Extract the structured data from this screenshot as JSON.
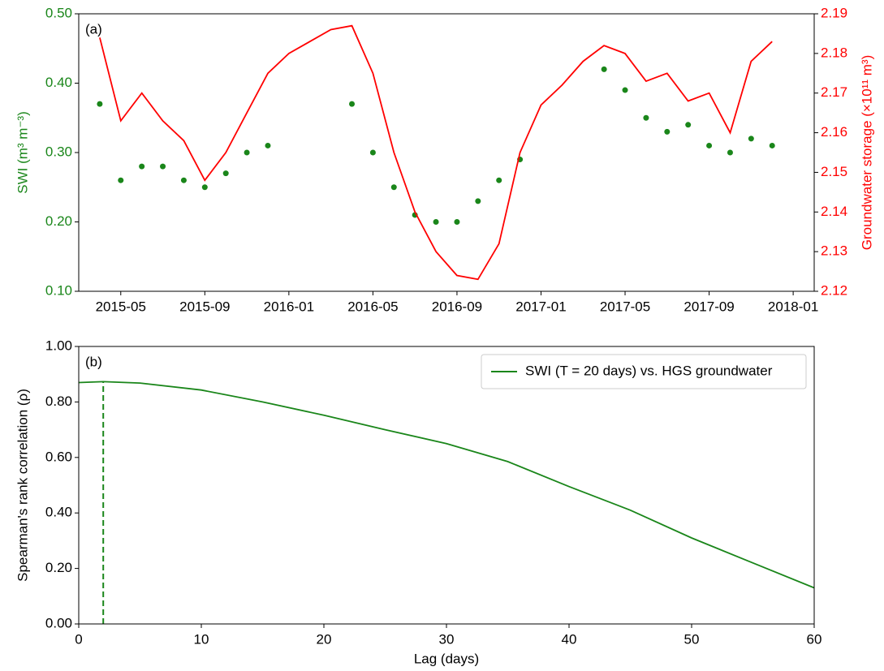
{
  "chart_data": [
    {
      "type": "combo",
      "annotation": "(a)",
      "ylabel": "SWI (m³ m⁻³)",
      "y2label": "Groundwater storage (×10¹¹ m³)",
      "x": [
        "2015-04",
        "2015-05",
        "2015-06",
        "2015-07",
        "2015-08",
        "2015-09",
        "2015-10",
        "2015-11",
        "2015-12",
        "2016-01",
        "2016-02",
        "2016-03",
        "2016-04",
        "2016-05",
        "2016-06",
        "2016-07",
        "2016-08",
        "2016-09",
        "2016-10",
        "2016-11",
        "2016-12",
        "2017-01",
        "2017-02",
        "2017-03",
        "2017-04",
        "2017-05",
        "2017-06",
        "2017-07",
        "2017-08",
        "2017-09",
        "2017-10",
        "2017-11",
        "2017-12"
      ],
      "xlim": [
        "2015-03",
        "2018-02"
      ],
      "xticks": [
        "2015-05",
        "2015-09",
        "2016-01",
        "2016-05",
        "2016-09",
        "2017-01",
        "2017-05",
        "2017-09",
        "2018-01"
      ],
      "ylim": [
        0.1,
        0.5
      ],
      "yticks": [
        {
          "value": 0.1,
          "label": "0.10"
        },
        {
          "value": 0.2,
          "label": "0.20"
        },
        {
          "value": 0.3,
          "label": "0.30"
        },
        {
          "value": 0.4,
          "label": "0.40"
        },
        {
          "value": 0.5,
          "label": "0.50"
        }
      ],
      "y2lim": [
        2.12,
        2.19
      ],
      "y2ticks": [
        2.12,
        2.13,
        2.14,
        2.15,
        2.16,
        2.17,
        2.18,
        2.19
      ],
      "series": [
        {
          "type": "scatter",
          "axis": "y",
          "color": "#1a861a",
          "values": [
            0.37,
            0.26,
            0.28,
            0.28,
            0.26,
            0.25,
            0.27,
            0.3,
            0.31,
            null,
            null,
            null,
            0.37,
            0.3,
            0.25,
            0.21,
            0.2,
            0.2,
            0.23,
            0.26,
            0.29,
            null,
            null,
            null,
            0.42,
            0.39,
            0.35,
            0.33,
            0.34,
            0.31,
            0.3,
            0.32,
            0.31
          ]
        },
        {
          "type": "line",
          "axis": "y2",
          "color": "#ff0000",
          "values": [
            2.184,
            2.163,
            2.17,
            2.163,
            2.158,
            2.148,
            2.155,
            2.165,
            2.175,
            2.18,
            2.183,
            2.186,
            2.187,
            2.175,
            2.155,
            2.14,
            2.13,
            2.124,
            2.123,
            2.132,
            2.155,
            2.167,
            2.172,
            2.178,
            2.182,
            2.18,
            2.173,
            2.175,
            2.168,
            2.17,
            2.16,
            2.178,
            2.183
          ]
        }
      ]
    },
    {
      "type": "line",
      "annotation": "(b)",
      "xlabel": "Lag (days)",
      "ylabel": "Spearman's rank correlation (ρ)",
      "x": [
        0,
        2,
        5,
        10,
        15,
        20,
        25,
        30,
        35,
        40,
        45,
        50,
        55,
        60
      ],
      "xlim": [
        0,
        60
      ],
      "xticks": [
        0,
        10,
        20,
        30,
        40,
        50,
        60
      ],
      "ylim": [
        0,
        1
      ],
      "yticks": [
        {
          "value": 0,
          "label": "0.00"
        },
        {
          "value": 0.2,
          "label": "0.20"
        },
        {
          "value": 0.4,
          "label": "0.40"
        },
        {
          "value": 0.6,
          "label": "0.60"
        },
        {
          "value": 0.8,
          "label": "0.80"
        },
        {
          "value": 1,
          "label": "1.00"
        }
      ],
      "legend": "upper right",
      "vline_x": 2,
      "series": [
        {
          "type": "line",
          "axis": "y",
          "name": "SWI (T = 20 days) vs. HGS groundwater",
          "color": "#1a861a",
          "values": [
            0.87,
            0.873,
            0.868,
            0.843,
            0.8,
            0.752,
            0.7,
            0.65,
            0.585,
            0.495,
            0.41,
            0.31,
            0.22,
            0.13
          ]
        }
      ]
    }
  ]
}
